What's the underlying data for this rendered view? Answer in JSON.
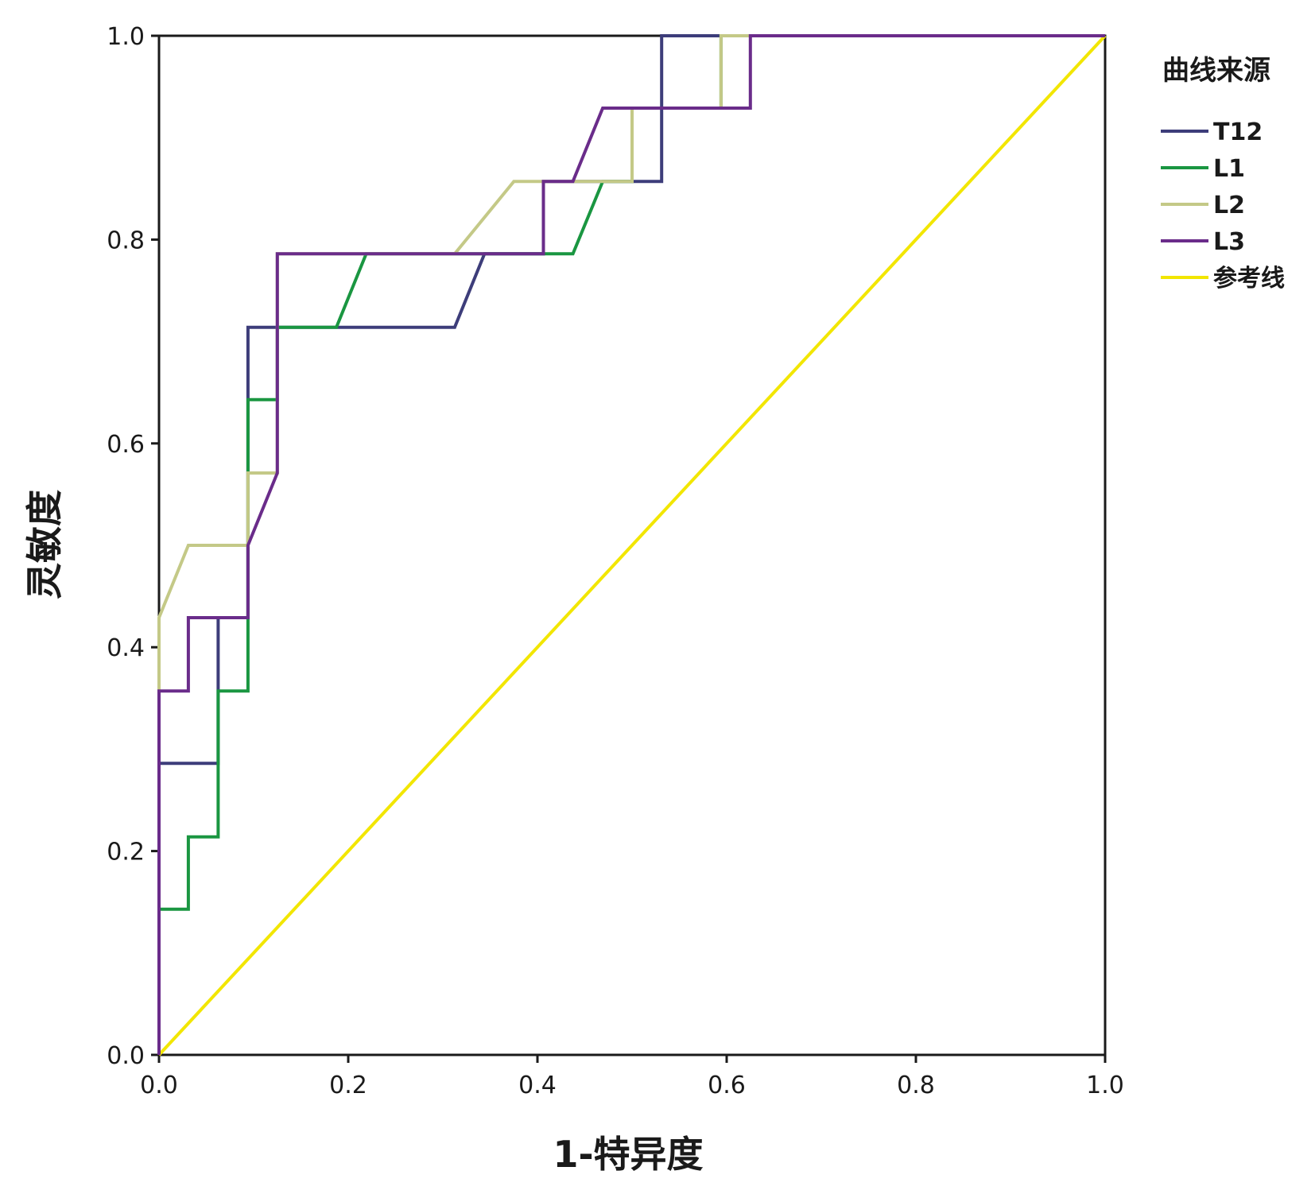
{
  "chart_data": {
    "type": "line",
    "xlabel": "1-特异度",
    "ylabel": "灵敏度",
    "xlim": [
      0,
      1
    ],
    "ylim": [
      0,
      1
    ],
    "xticks": [
      "0.0",
      "0.2",
      "0.4",
      "0.6",
      "0.8",
      "1.0"
    ],
    "yticks": [
      "0.0",
      "0.2",
      "0.4",
      "0.6",
      "0.8",
      "1.0"
    ],
    "grid": false,
    "legend": {
      "title": "曲线来源",
      "placement": "right"
    },
    "series": [
      {
        "name": "T12",
        "color": "#3d3d7a",
        "x": [
          0,
          0,
          0.0625,
          0.0625,
          0.094,
          0.094,
          0.3125,
          0.344,
          0.4063,
          0.4063,
          0.4375,
          0.5313,
          0.5313,
          1.0
        ],
        "y": [
          0,
          0.286,
          0.286,
          0.429,
          0.429,
          0.714,
          0.714,
          0.786,
          0.786,
          0.857,
          0.857,
          0.857,
          1.0,
          1.0
        ]
      },
      {
        "name": "L1",
        "color": "#1a9641",
        "x": [
          0,
          0,
          0.031,
          0.031,
          0.0625,
          0.0625,
          0.094,
          0.094,
          0.125,
          0.125,
          0.1875,
          0.219,
          0.4063,
          0.4375,
          0.469,
          0.5,
          0.5,
          0.594,
          0.594,
          1.0
        ],
        "y": [
          0,
          0.143,
          0.143,
          0.214,
          0.214,
          0.357,
          0.357,
          0.643,
          0.643,
          0.714,
          0.714,
          0.786,
          0.786,
          0.786,
          0.857,
          0.857,
          0.929,
          0.929,
          1.0,
          1.0
        ]
      },
      {
        "name": "L2",
        "color": "#c4c987",
        "x": [
          0,
          0,
          0.031,
          0.094,
          0.094,
          0.125,
          0.125,
          0.3125,
          0.375,
          0.5,
          0.5,
          0.594,
          0.594,
          1.0
        ],
        "y": [
          0,
          0.429,
          0.5,
          0.5,
          0.571,
          0.571,
          0.786,
          0.786,
          0.857,
          0.857,
          0.929,
          0.929,
          1.0,
          1.0
        ]
      },
      {
        "name": "L3",
        "color": "#6a2c8a",
        "x": [
          0,
          0,
          0.031,
          0.031,
          0.094,
          0.094,
          0.125,
          0.125,
          0.4063,
          0.4063,
          0.4375,
          0.469,
          0.625,
          0.625,
          1.0
        ],
        "y": [
          0,
          0.357,
          0.357,
          0.429,
          0.429,
          0.5,
          0.571,
          0.786,
          0.786,
          0.857,
          0.857,
          0.929,
          0.929,
          1.0,
          1.0
        ]
      },
      {
        "name": "参考线",
        "color": "#f2e600",
        "x": [
          0,
          1
        ],
        "y": [
          0,
          1
        ]
      }
    ]
  }
}
